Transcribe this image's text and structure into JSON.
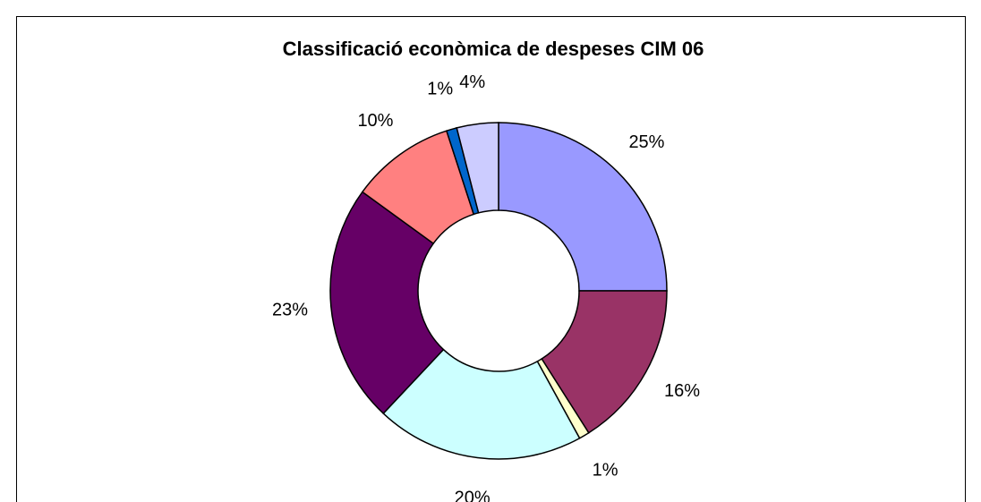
{
  "chart_data": {
    "type": "donut",
    "title": "Classificació econòmica de despeses CIM 06",
    "categories": [
      null,
      null,
      null,
      null,
      null,
      null,
      null,
      null
    ],
    "values": [
      25,
      16,
      1,
      20,
      23,
      10,
      1,
      4
    ],
    "value_labels": [
      "25%",
      "16%",
      "1%",
      "20%",
      "23%",
      "10%",
      "1%",
      "4%"
    ],
    "colors": [
      "#9999ff",
      "#993366",
      "#ffffcc",
      "#ccffff",
      "#660066",
      "#ff8080",
      "#0066cc",
      "#ccccff"
    ]
  }
}
